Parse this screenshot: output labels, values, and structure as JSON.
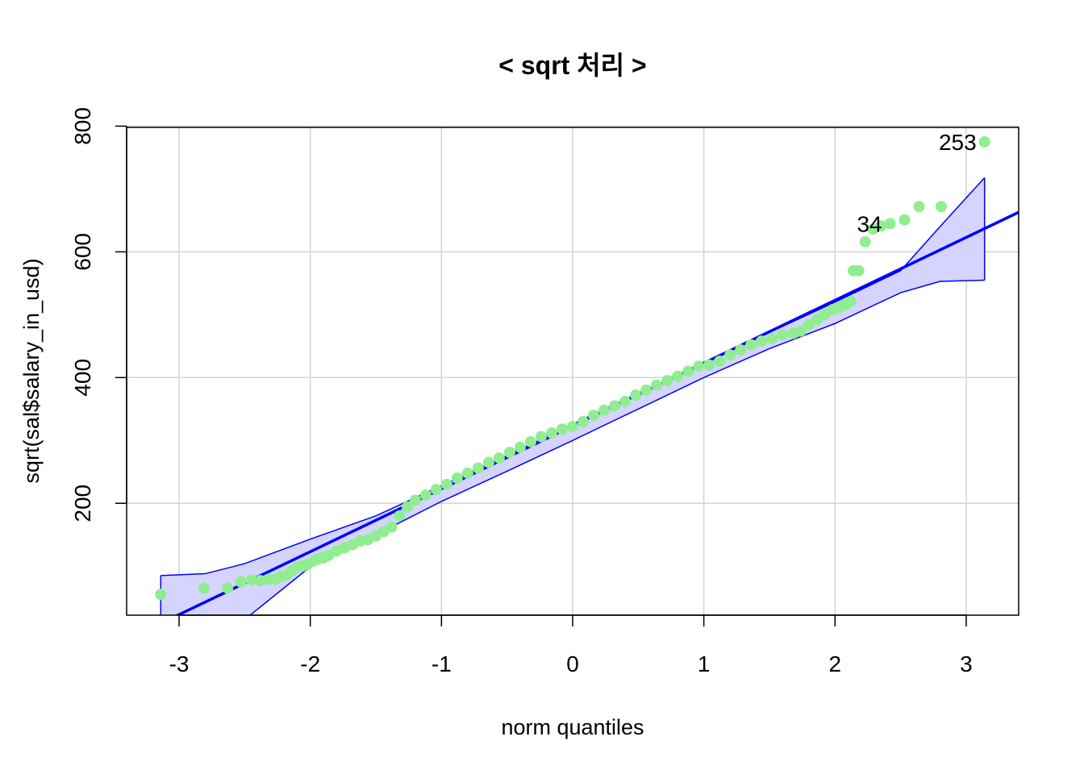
{
  "chart_data": {
    "type": "scatter",
    "subtype": "qq-plot",
    "title": "< sqrt 처리 >",
    "xlabel": "norm quantiles",
    "ylabel": "sqrt(sal$salary_in_usd)",
    "xlim": [
      -3.4,
      3.4
    ],
    "ylim": [
      22,
      798
    ],
    "x_ticks": [
      -3,
      -2,
      -1,
      0,
      1,
      2,
      3
    ],
    "x_tick_labels": [
      "-3",
      "-2",
      "-1",
      "0",
      "1",
      "2",
      "3"
    ],
    "y_ticks": [
      200,
      400,
      600,
      800
    ],
    "y_tick_labels": [
      "200",
      "400",
      "600",
      "800"
    ],
    "grid": true,
    "colors": {
      "points": "#90EE90",
      "line": "#0000FF",
      "band_fill": "#D4D4FF",
      "band_edge": "#0000FF",
      "grid": "#D3D3D3"
    },
    "reference_line": {
      "intercept": 323,
      "slope": 100
    },
    "envelope": {
      "x": [
        -3.14,
        -2.8,
        -2.5,
        -2.0,
        -1.5,
        -1.0,
        -0.5,
        0.0,
        0.5,
        1.0,
        1.5,
        2.0,
        2.5,
        2.8,
        3.14
      ],
      "upper": [
        85,
        88,
        104,
        143,
        180,
        228,
        276,
        326,
        375,
        423,
        472,
        520,
        570,
        640,
        718
      ],
      "lower": [
        -10,
        0,
        15,
        99,
        150,
        203,
        251,
        300,
        350,
        400,
        446,
        486,
        535,
        553,
        555
      ]
    },
    "series": [
      {
        "x": [
          -3.14,
          -2.81,
          -2.63,
          -2.53,
          -2.45,
          -2.38,
          -2.32,
          -2.27,
          -2.22,
          -2.18,
          -2.14,
          -2.1,
          -2.06,
          -2.02,
          -1.98,
          -1.94,
          -1.9,
          -1.86,
          -1.8,
          -1.74,
          -1.68,
          -1.62,
          -1.56,
          -1.5,
          -1.44,
          -1.38,
          -1.32,
          -1.26,
          -1.2,
          -1.12,
          -1.04,
          -0.96,
          -0.88,
          -0.8,
          -0.72,
          -0.64,
          -0.56,
          -0.48,
          -0.4,
          -0.32,
          -0.24,
          -0.16,
          -0.08,
          0.0,
          0.08,
          0.16,
          0.24,
          0.32,
          0.4,
          0.48,
          0.56,
          0.64,
          0.72,
          0.8,
          0.88,
          0.96,
          1.04,
          1.12,
          1.2,
          1.28,
          1.36,
          1.44,
          1.52,
          1.6,
          1.68,
          1.74,
          1.8,
          1.86,
          1.92,
          1.98,
          2.04,
          2.08,
          2.12,
          2.14,
          2.18,
          2.23,
          2.29,
          2.35,
          2.42,
          2.53,
          2.64,
          2.81,
          3.14
        ],
        "y": [
          55,
          65,
          65,
          75,
          78,
          77,
          79,
          79,
          84,
          86,
          93,
          98,
          100,
          103,
          108,
          111,
          113,
          117,
          124,
          129,
          134,
          140,
          142,
          148,
          155,
          162,
          180,
          194,
          205,
          213,
          222,
          230,
          240,
          248,
          256,
          265,
          272,
          281,
          289,
          298,
          306,
          312,
          318,
          322,
          330,
          340,
          348,
          355,
          362,
          372,
          380,
          388,
          395,
          402,
          410,
          418,
          420,
          426,
          436,
          444,
          452,
          458,
          462,
          468,
          470,
          474,
          484,
          492,
          500,
          508,
          512,
          516,
          521,
          570,
          570,
          616,
          636,
          641,
          645,
          651,
          672,
          672,
          775
        ]
      }
    ],
    "annotations": [
      {
        "text": "253",
        "x": 3.14,
        "y": 775
      },
      {
        "text": "34",
        "x": 2.42,
        "y": 645
      }
    ]
  }
}
